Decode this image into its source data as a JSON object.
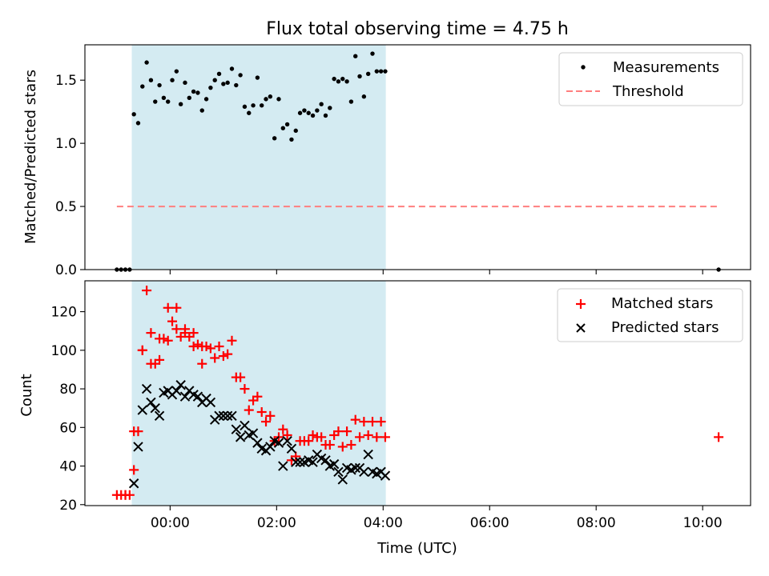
{
  "chart_data": {
    "title": "Flux total observing time = 4.75 h",
    "shared_x": {
      "label": "Time (UTC)",
      "unit": "hours_since_00:00",
      "range": [
        -1.6,
        10.9
      ],
      "ticks": [
        0,
        2,
        4,
        6,
        8,
        10
      ],
      "tick_labels": [
        "00:00",
        "02:00",
        "04:00",
        "06:00",
        "08:00",
        "10:00"
      ]
    },
    "observing_window": {
      "start": -0.72,
      "end": 4.05,
      "color": "#add8e6"
    },
    "panels": [
      {
        "type": "scatter",
        "ylabel": "Matched/Predicted stars",
        "ylim": [
          0,
          1.78
        ],
        "yticks": [
          0.0,
          0.5,
          1.0,
          1.5
        ],
        "ytick_labels": [
          "0.0",
          "0.5",
          "1.0",
          "1.5"
        ],
        "legend": [
          "Measurements",
          "Threshold"
        ],
        "legend_position": "top-right",
        "threshold": {
          "name": "Threshold",
          "value": 0.5,
          "x_range": [
            -1.0,
            10.3
          ],
          "color": "#ff7f7f"
        },
        "series": [
          {
            "name": "Measurements",
            "color": "#000000",
            "marker": "dot",
            "x": [
              -1.0,
              -0.92,
              -0.84,
              -0.76,
              -0.68,
              -0.6,
              -0.52,
              -0.44,
              -0.36,
              -0.28,
              -0.2,
              -0.12,
              -0.04,
              0.04,
              0.12,
              0.2,
              0.28,
              0.36,
              0.44,
              0.52,
              0.6,
              0.68,
              0.76,
              0.84,
              0.92,
              1.0,
              1.08,
              1.16,
              1.24,
              1.32,
              1.4,
              1.48,
              1.56,
              1.64,
              1.72,
              1.8,
              1.88,
              1.96,
              2.04,
              2.12,
              2.2,
              2.28,
              2.36,
              2.44,
              2.52,
              2.6,
              2.68,
              2.76,
              2.84,
              2.92,
              3.0,
              3.08,
              3.16,
              3.24,
              3.32,
              3.4,
              3.48,
              3.56,
              3.64,
              3.72,
              3.8,
              3.88,
              3.96,
              4.04,
              10.3
            ],
            "y": [
              0,
              0,
              0,
              0,
              1.23,
              1.16,
              1.45,
              1.64,
              1.5,
              1.33,
              1.46,
              1.36,
              1.33,
              1.5,
              1.57,
              1.31,
              1.48,
              1.36,
              1.41,
              1.4,
              1.26,
              1.35,
              1.44,
              1.5,
              1.55,
              1.47,
              1.48,
              1.59,
              1.46,
              1.54,
              1.29,
              1.24,
              1.3,
              1.52,
              1.3,
              1.35,
              1.37,
              1.04,
              1.35,
              1.12,
              1.15,
              1.03,
              1.1,
              1.24,
              1.26,
              1.24,
              1.22,
              1.26,
              1.31,
              1.22,
              1.28,
              1.51,
              1.49,
              1.51,
              1.49,
              1.33,
              1.69,
              1.53,
              1.37,
              1.55,
              1.71,
              1.57,
              1.57,
              1.57,
              0
            ]
          }
        ]
      },
      {
        "type": "scatter",
        "ylabel": "Count",
        "ylim": [
          19.5,
          136
        ],
        "yticks": [
          20,
          40,
          60,
          80,
          100,
          120
        ],
        "ytick_labels": [
          "20",
          "40",
          "60",
          "80",
          "100",
          "120"
        ],
        "legend": [
          "Matched stars",
          "Predicted stars"
        ],
        "legend_position": "top-right",
        "series": [
          {
            "name": "Matched stars",
            "color": "#ff0000",
            "marker": "plus",
            "x": [
              -1.0,
              -0.92,
              -0.84,
              -0.76,
              -0.68,
              -0.6,
              -0.52,
              -0.44,
              -0.36,
              -0.28,
              -0.2,
              -0.12,
              -0.04,
              0.04,
              0.12,
              0.2,
              0.28,
              0.36,
              0.44,
              0.52,
              0.6,
              0.68,
              0.76,
              0.84,
              0.92,
              1.0,
              1.08,
              1.16,
              1.24,
              1.32,
              1.4,
              1.48,
              1.56,
              1.64,
              1.72,
              1.8,
              1.88,
              1.96,
              2.04,
              2.12,
              2.2,
              2.28,
              2.36,
              2.44,
              2.52,
              2.6,
              2.68,
              2.76,
              2.84,
              2.92,
              3.0,
              3.08,
              3.16,
              3.24,
              3.32,
              3.4,
              3.48,
              3.56,
              3.64,
              3.72,
              3.8,
              3.88,
              3.96,
              4.04,
              -0.84,
              -0.68,
              -0.52,
              -0.36,
              -0.2,
              -0.04,
              0.12,
              0.28,
              0.44,
              0.6,
              10.3
            ],
            "y": [
              25,
              25,
              25,
              25,
              38,
              58,
              100,
              131,
              109,
              93,
              95,
              106,
              105,
              115,
              122,
              107,
              111,
              107,
              109,
              103,
              93,
              102,
              101,
              96,
              102,
              97,
              98,
              105,
              86,
              86,
              80,
              69,
              74,
              76,
              68,
              63,
              66,
              53,
              55,
              59,
              56,
              43,
              45,
              53,
              53,
              53,
              56,
              55,
              55,
              51,
              51,
              56,
              58,
              50,
              58,
              51,
              64,
              55,
              63,
              56,
              63,
              55,
              63,
              55,
              25,
              58,
              100,
              93,
              106,
              122,
              111,
              109,
              102,
              102,
              55
            ]
          },
          {
            "name": "Predicted stars",
            "color": "#000000",
            "marker": "x",
            "x": [
              -0.68,
              -0.6,
              -0.52,
              -0.44,
              -0.36,
              -0.28,
              -0.2,
              -0.12,
              -0.04,
              0.04,
              0.12,
              0.2,
              0.28,
              0.36,
              0.44,
              0.52,
              0.6,
              0.68,
              0.76,
              0.84,
              0.92,
              1.0,
              1.08,
              1.16,
              1.24,
              1.32,
              1.4,
              1.48,
              1.56,
              1.64,
              1.72,
              1.8,
              1.88,
              1.96,
              2.04,
              2.12,
              2.2,
              2.28,
              2.36,
              2.44,
              2.52,
              2.6,
              2.68,
              2.76,
              2.84,
              2.92,
              3.0,
              3.08,
              3.16,
              3.24,
              3.32,
              3.4,
              3.48,
              3.56,
              3.64,
              3.72,
              3.8,
              3.88,
              3.96,
              4.04
            ],
            "y": [
              31,
              50,
              69,
              80,
              73,
              70,
              66,
              78,
              79,
              77,
              79,
              82,
              76,
              79,
              77,
              76,
              73,
              75,
              73,
              64,
              66,
              66,
              66,
              66,
              59,
              55,
              61,
              56,
              57,
              52,
              49,
              48,
              50,
              53,
              52,
              40,
              53,
              49,
              42,
              42,
              42,
              43,
              42,
              46,
              44,
              43,
              40,
              41,
              37,
              33,
              39,
              38,
              39,
              39,
              37,
              46,
              37,
              36,
              37,
              35
            ]
          }
        ]
      }
    ]
  }
}
